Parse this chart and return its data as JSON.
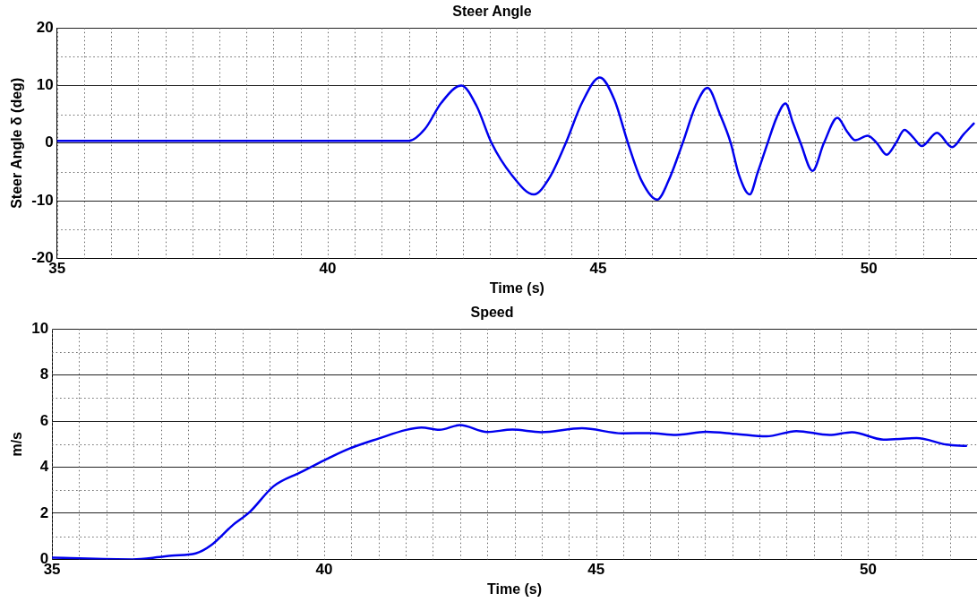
{
  "chart_data": [
    {
      "type": "line",
      "title": "Steer Angle",
      "xlabel": "Time (s)",
      "ylabel": "Steer Angle δ (deg)",
      "xlim": [
        35,
        52
      ],
      "ylim": [
        -20,
        20
      ],
      "xticks": [
        35,
        40,
        45,
        50
      ],
      "yticks": [
        -20,
        -10,
        0,
        10,
        20
      ],
      "grid": true,
      "marker": "none",
      "x": [
        35,
        37,
        39,
        41,
        41.5,
        41.8,
        42.1,
        42.47,
        42.75,
        43.03,
        43.4,
        43.81,
        44.1,
        44.4,
        44.7,
        45.03,
        45.3,
        45.55,
        45.8,
        46.09,
        46.3,
        46.56,
        46.8,
        47.02,
        47.25,
        47.45,
        47.6,
        47.8,
        47.95,
        48.13,
        48.3,
        48.46,
        48.6,
        48.74,
        48.96,
        49.17,
        49.42,
        49.6,
        49.75,
        49.98,
        50.15,
        50.33,
        50.5,
        50.66,
        50.82,
        50.98,
        51.26,
        51.54,
        51.75,
        51.94
      ],
      "series": [
        {
          "color": "#0000ee",
          "values": [
            0.4,
            0.4,
            0.4,
            0.4,
            0.4,
            2.5,
            7,
            10,
            6.5,
            0,
            -5.5,
            -8.9,
            -6,
            0,
            7,
            11.4,
            7.5,
            0,
            -6.5,
            -9.8,
            -6.5,
            0,
            6.5,
            9.6,
            5,
            0,
            -5.5,
            -8.9,
            -5,
            0,
            4.5,
            6.9,
            3.5,
            0,
            -4.8,
            0,
            4.4,
            2,
            0.5,
            1.3,
            0,
            -2,
            0,
            2.3,
            1,
            -0.5,
            1.8,
            -0.7,
            1.5,
            3.4
          ]
        }
      ]
    },
    {
      "type": "line",
      "title": "Speed",
      "xlabel": "Time (s)",
      "ylabel": "m/s",
      "xlim": [
        35,
        52
      ],
      "ylim": [
        0,
        10
      ],
      "xticks": [
        35,
        40,
        45,
        50
      ],
      "yticks": [
        0,
        2,
        4,
        6,
        8,
        10
      ],
      "grid": true,
      "marker": "none",
      "x": [
        35,
        36.48,
        36.98,
        37.2,
        37.64,
        37.92,
        38.31,
        38.64,
        39.07,
        39.57,
        40.02,
        40.46,
        41.01,
        41.51,
        41.79,
        42.12,
        42.5,
        43.0,
        43.46,
        43.99,
        44.74,
        45.48,
        45.98,
        46.47,
        47.02,
        47.58,
        48.13,
        48.68,
        49.29,
        49.7,
        50.28,
        50.89,
        51.44,
        51.8
      ],
      "series": [
        {
          "color": "#0000ee",
          "values": [
            0.07,
            0,
            0.1,
            0.16,
            0.26,
            0.61,
            1.46,
            2.07,
            3.17,
            3.78,
            4.32,
            4.8,
            5.25,
            5.62,
            5.72,
            5.62,
            5.83,
            5.53,
            5.63,
            5.52,
            5.69,
            5.47,
            5.48,
            5.4,
            5.54,
            5.44,
            5.34,
            5.57,
            5.4,
            5.52,
            5.2,
            5.26,
            4.98,
            4.92
          ]
        }
      ]
    }
  ]
}
